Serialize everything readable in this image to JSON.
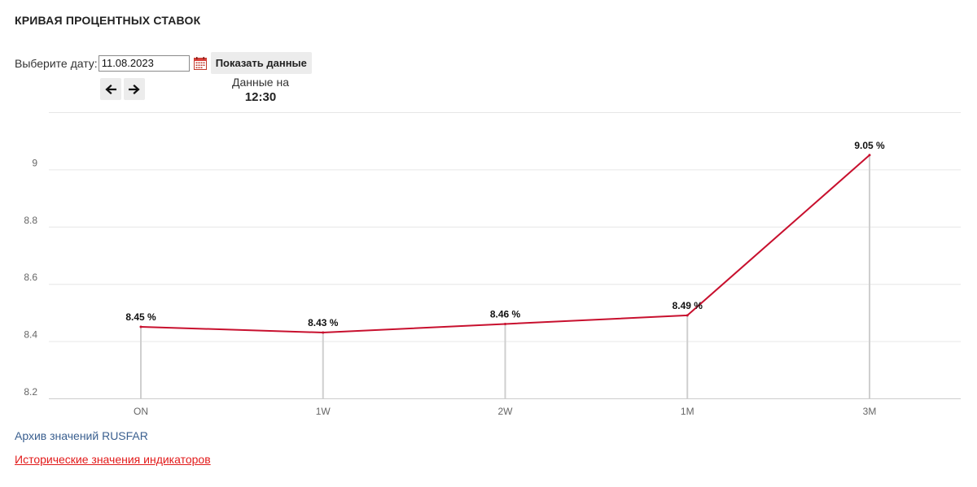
{
  "page": {
    "title": "КРИВАЯ ПРОЦЕНТНЫХ СТАВОК"
  },
  "controls": {
    "date_label": "Выберите дату:",
    "date_value": "11.08.2023",
    "show_button_label": "Показать данные",
    "prev_icon": "arrow-left-icon",
    "next_icon": "arrow-right-icon",
    "calendar_icon": "calendar-icon"
  },
  "data_time": {
    "label": "Данные на",
    "value": "12:30"
  },
  "chart_data": {
    "type": "line",
    "categories": [
      "ON",
      "1W",
      "2W",
      "1M",
      "3M"
    ],
    "series": [
      {
        "values": [
          8.45,
          8.43,
          8.46,
          8.49,
          9.05
        ],
        "color": "#c8102e"
      }
    ],
    "data_labels": [
      "8.45 %",
      "8.43 %",
      "8.46 %",
      "8.49 %",
      "9.05 %"
    ],
    "yticks": [
      8.2,
      8.4,
      8.6,
      8.8,
      9
    ],
    "ytick_labels": [
      "8.2",
      "8.4",
      "8.6",
      "8.8",
      "9"
    ],
    "ylim": [
      8.2,
      9.2
    ],
    "grid": true,
    "drop_lines": true,
    "title": "",
    "xlabel": "",
    "ylabel": ""
  },
  "links": {
    "archive": "Архив значений RUSFAR",
    "history": "Исторические значения индикаторов"
  }
}
